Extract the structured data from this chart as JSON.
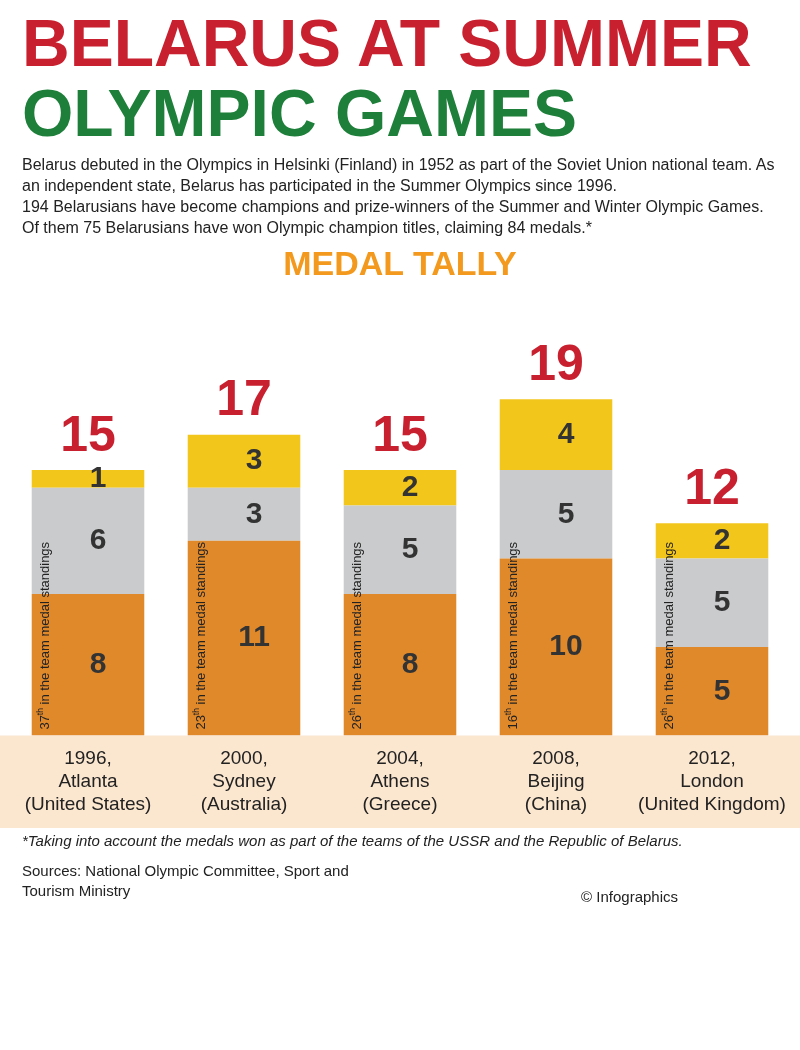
{
  "chart_data": {
    "type": "bar",
    "title": "BELARUS AT SUMMER OLYMPIC GAMES",
    "subtitle": "Belarus debuted in the Olympics in Helsinki (Finland) in 1952 as part of the Soviet Union national team. As an independent state, Belarus has participated in the Summer Olympics since 1996.\n194 Belarusians have become champions and prize-winners of the Summer and Winter Olympic Games. Of them 75 Belarusians have won Olympic champion titles, claiming 84 medals.*",
    "categories": [
      "1996, Atlanta (United States)",
      "2000, Sydney (Australia)",
      "2004, Athens (Greece)",
      "2008, Beijing (China)",
      "2012, London (United Kingdom)"
    ],
    "stacked": true,
    "series": [
      {
        "color": "#e0892b",
        "values": [
          8,
          11,
          8,
          10,
          5
        ]
      },
      {
        "color": "#c9cbcc",
        "values": [
          6,
          3,
          5,
          5,
          5
        ]
      },
      {
        "color": "#f3c61c",
        "values": [
          1,
          3,
          2,
          4,
          2
        ]
      }
    ],
    "data_labels": true,
    "totals": [
      "15",
      "17",
      "15",
      "19",
      "12"
    ],
    "annotations": [
      "MEDAL TALLY",
      "37$^{th}$ in the team medal standings",
      "23$^{th}$ in the team medal standings",
      "26$^{th}$ in the team medal standings",
      "16$^{th}$ in the team medal standings",
      "26$^{th}$ in the team medal standings",
      "*Taking into account the medals won as part of the teams of the USSR and the Republic of Belarus.",
      "Sources: National Olympic Committee, Sport and Tourism Ministry",
      "© Infographics"
    ],
    "legend": false,
    "grid": false
  }
}
